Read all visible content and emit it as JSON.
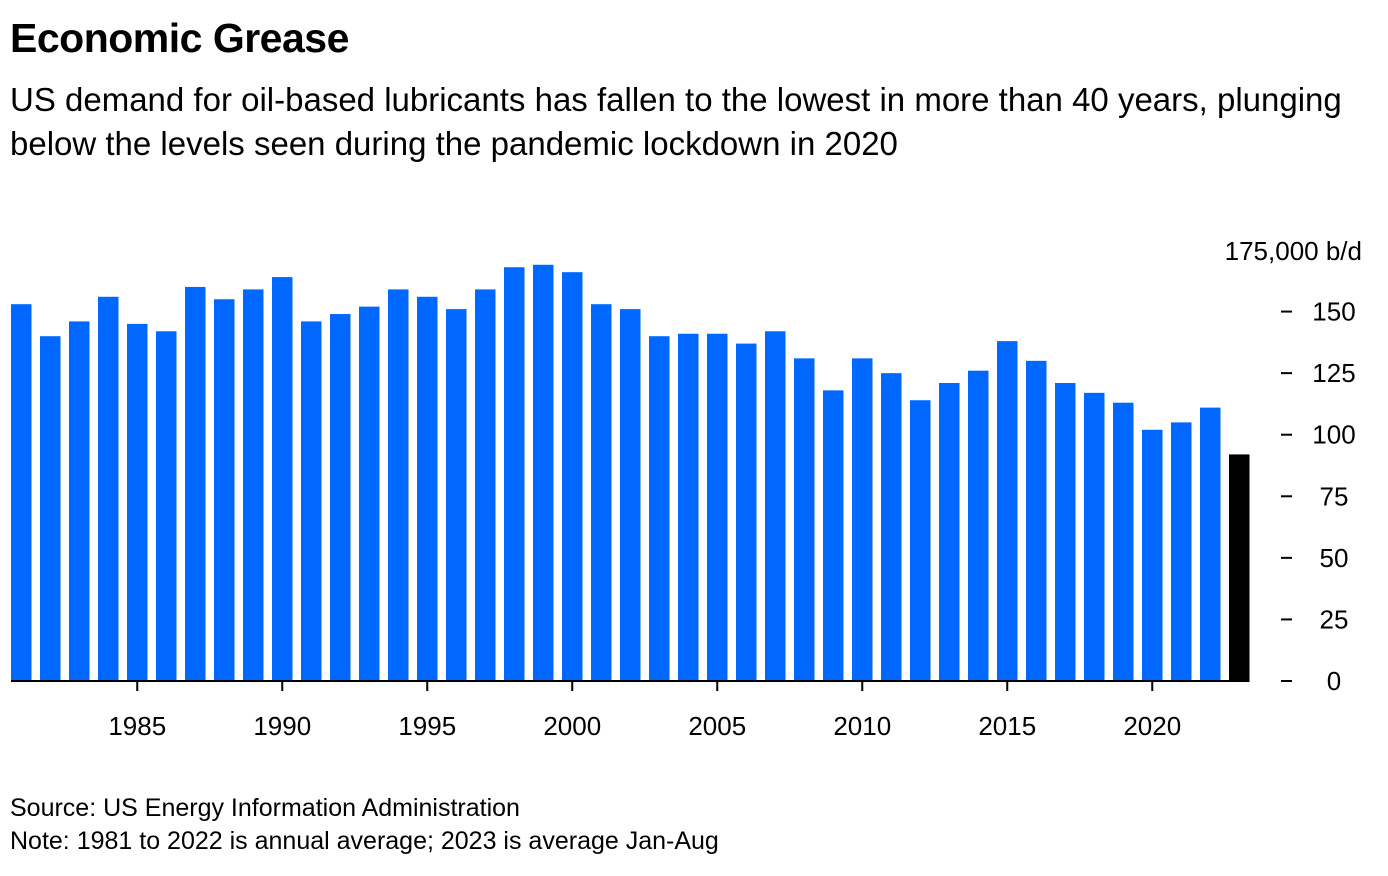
{
  "header": {
    "title": "Economic Grease",
    "subtitle": "US demand for oil-based lubricants has fallen to the lowest in more than 40 years, plunging below the levels seen during the pandemic lockdown in 2020"
  },
  "footer": {
    "source": "Source: US Energy Information Administration",
    "note": "Note: 1981 to 2022 is annual average; 2023 is average Jan-Aug"
  },
  "colors": {
    "bar": "#0068ff",
    "highlight_bar": "#000000",
    "axis": "#000000"
  },
  "chart_data": {
    "type": "bar",
    "title": "Economic Grease",
    "subtitle": "US demand for oil-based lubricants has fallen to the lowest in more than 40 years, plunging below the levels seen during the pandemic lockdown in 2020",
    "ylabel": "175,000 b/d",
    "y_axis_position": "right",
    "ylim": [
      0,
      175
    ],
    "y_ticks": [
      0,
      25,
      50,
      75,
      100,
      125,
      150
    ],
    "y_tick_labels": [
      "0",
      "25",
      "50",
      "75",
      "100",
      "125",
      "150"
    ],
    "x_ticks": [
      1985,
      1990,
      1995,
      2000,
      2005,
      2010,
      2015,
      2020
    ],
    "grid": false,
    "categories": [
      1981,
      1982,
      1983,
      1984,
      1985,
      1986,
      1987,
      1988,
      1989,
      1990,
      1991,
      1992,
      1993,
      1994,
      1995,
      1996,
      1997,
      1998,
      1999,
      2000,
      2001,
      2002,
      2003,
      2004,
      2005,
      2006,
      2007,
      2008,
      2009,
      2010,
      2011,
      2012,
      2013,
      2014,
      2015,
      2016,
      2017,
      2018,
      2019,
      2020,
      2021,
      2022,
      2023
    ],
    "values": [
      153,
      140,
      146,
      156,
      145,
      142,
      160,
      155,
      159,
      164,
      146,
      149,
      152,
      159,
      156,
      151,
      159,
      168,
      169,
      166,
      153,
      151,
      140,
      141,
      141,
      137,
      142,
      131,
      118,
      131,
      125,
      114,
      121,
      126,
      138,
      130,
      121,
      117,
      113,
      102,
      105,
      111,
      92
    ],
    "highlight": {
      "category": 2023,
      "color": "#000000"
    }
  }
}
